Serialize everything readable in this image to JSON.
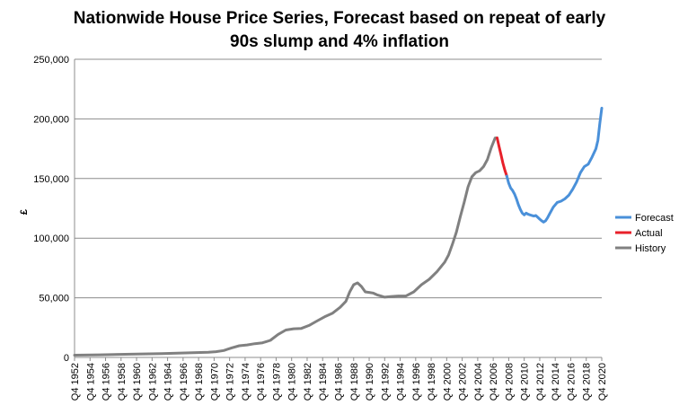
{
  "chart_data": {
    "type": "line",
    "title_lines": [
      "Nationwide House Price Series, Forecast based on repeat of early",
      "90s slump and 4% inflation"
    ],
    "xlabel": "",
    "ylabel": "£",
    "ylim": [
      0,
      250000
    ],
    "yticks": [
      0,
      50000,
      100000,
      150000,
      200000,
      250000
    ],
    "ytick_labels": [
      "0",
      "50,000",
      "100,000",
      "150,000",
      "200,000",
      "250,000"
    ],
    "xlim": [
      1952.75,
      2020.75
    ],
    "xtick_labels": [
      "Q4 1952",
      "Q4 1954",
      "Q4 1956",
      "Q4 1958",
      "Q4 1960",
      "Q4 1962",
      "Q4 1964",
      "Q4 1966",
      "Q4 1968",
      "Q4 1970",
      "Q4 1972",
      "Q4 1974",
      "Q4 1976",
      "Q4 1978",
      "Q4 1980",
      "Q4 1982",
      "Q4 1984",
      "Q4 1986",
      "Q4 1988",
      "Q4 1990",
      "Q4 1992",
      "Q4 1994",
      "Q4 1996",
      "Q4 1998",
      "Q4 2000",
      "Q4 2002",
      "Q4 2004",
      "Q4 2006",
      "Q4 2008",
      "Q4 2010",
      "Q4 2012",
      "Q4 2014",
      "Q4 2016",
      "Q4 2018",
      "Q4 2020"
    ],
    "grid": true,
    "legend_position": "right",
    "series": [
      {
        "name": "History",
        "color": "#808080",
        "x": [
          1952.75,
          1956,
          1960,
          1964,
          1968,
          1970,
          1971,
          1972,
          1973,
          1974,
          1975,
          1976,
          1977,
          1978,
          1979,
          1980,
          1981,
          1982,
          1983,
          1984,
          1985,
          1986,
          1987,
          1987.75,
          1988.25,
          1988.75,
          1989.25,
          1989.75,
          1990.25,
          1990.75,
          1991.25,
          1991.75,
          1992.25,
          1992.75,
          1993.5,
          1994.5,
          1995.5,
          1996.5,
          1997.5,
          1998.5,
          1999.5,
          2000.5,
          2001,
          2001.5,
          2002,
          2002.5,
          2003,
          2003.5,
          2004,
          2004.5,
          2005,
          2005.5,
          2006,
          2006.5,
          2007,
          2007.25
        ],
        "y": [
          1900,
          2200,
          2700,
          3200,
          3900,
          4300,
          4800,
          5800,
          8000,
          9800,
          10500,
          11500,
          12300,
          14300,
          19300,
          23000,
          24000,
          24300,
          26800,
          30500,
          34000,
          37000,
          42000,
          47000,
          55000,
          61000,
          62500,
          59500,
          55000,
          54500,
          54000,
          52500,
          51500,
          50500,
          51000,
          51500,
          51500,
          55000,
          61000,
          65500,
          72000,
          80000,
          86000,
          95000,
          105000,
          118000,
          130000,
          143000,
          151500,
          155000,
          156500,
          160000,
          166000,
          176000,
          184000,
          184000
        ]
      },
      {
        "name": "Actual",
        "color": "#e8202a",
        "x": [
          2007.25,
          2007.5,
          2007.75,
          2008,
          2008.25,
          2008.5
        ],
        "y": [
          184000,
          177000,
          170000,
          163000,
          157000,
          152000
        ]
      },
      {
        "name": "Forecast",
        "color": "#4a90d9",
        "x": [
          2008.5,
          2008.75,
          2009,
          2009.25,
          2009.5,
          2009.75,
          2010,
          2010.25,
          2010.5,
          2010.75,
          2011,
          2011.25,
          2011.5,
          2011.75,
          2012,
          2012.25,
          2012.5,
          2012.75,
          2013,
          2013.25,
          2013.5,
          2013.75,
          2014,
          2014.5,
          2015,
          2015.5,
          2016,
          2016.5,
          2017,
          2017.5,
          2018,
          2018.5,
          2019,
          2019.5,
          2020,
          2020.25,
          2020.5,
          2020.75
        ],
        "y": [
          152000,
          146000,
          142000,
          140000,
          137000,
          133000,
          128000,
          124000,
          121000,
          119500,
          121000,
          120000,
          119500,
          119000,
          118500,
          119000,
          117500,
          116000,
          114500,
          113500,
          114500,
          117000,
          120000,
          126000,
          130000,
          131000,
          133000,
          136000,
          141000,
          147000,
          155000,
          160000,
          162000,
          168000,
          175000,
          182000,
          196000,
          209000
        ]
      }
    ]
  }
}
